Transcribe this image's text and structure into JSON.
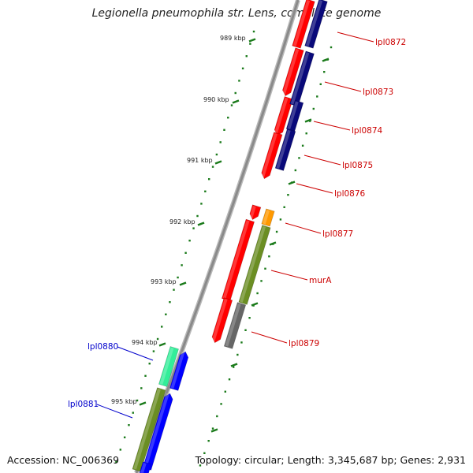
{
  "title": "Legionella pneumophila str. Lens, complete genome",
  "accession": "Accession: NC_006369",
  "summary": "Topology: circular; Length: 3,345,687 bp; Genes: 2,931",
  "ticks": [
    "989 kbp",
    "990 kbp",
    "991 kbp",
    "992 kbp",
    "993 kbp",
    "994 kbp",
    "995 kbp"
  ],
  "colors": {
    "backbone": "#8a8a8a",
    "tick": "#1a7a1a",
    "cds_red": "#ff0000",
    "cds_navy": "#0a0a7a",
    "cds_olive": "#6b8e23",
    "cds_orange": "#ff9900",
    "cds_gray": "#666666",
    "cds_blue": "#0000ff",
    "cds_teal": "#33ee99",
    "label_forward": "#cc0000",
    "label_reverse": "#0000cc"
  },
  "genes": [
    {
      "label": "lpl0872",
      "strand": "forward",
      "features": [
        "cds_red",
        "cds_navy"
      ]
    },
    {
      "label": "lpl0873",
      "strand": "forward",
      "features": [
        "cds_red",
        "cds_navy"
      ]
    },
    {
      "label": "lpl0874",
      "strand": "forward",
      "features": [
        "cds_red",
        "cds_navy"
      ]
    },
    {
      "label": "lpl0875",
      "strand": "forward",
      "features": [
        "cds_red",
        "cds_navy"
      ]
    },
    {
      "label": "lpl0876",
      "strand": "forward",
      "features": [
        "cds_red"
      ]
    },
    {
      "label": "lpl0877",
      "strand": "forward",
      "features": [
        "cds_red",
        "cds_orange"
      ]
    },
    {
      "label": "murA",
      "strand": "forward",
      "features": [
        "cds_red",
        "cds_olive"
      ]
    },
    {
      "label": "lpl0879",
      "strand": "forward",
      "features": [
        "cds_red",
        "cds_gray"
      ]
    },
    {
      "label": "lpl0880",
      "strand": "reverse",
      "features": [
        "cds_teal",
        "cds_blue"
      ]
    },
    {
      "label": "lpl0881",
      "strand": "reverse",
      "features": [
        "cds_olive",
        "cds_blue"
      ]
    }
  ]
}
